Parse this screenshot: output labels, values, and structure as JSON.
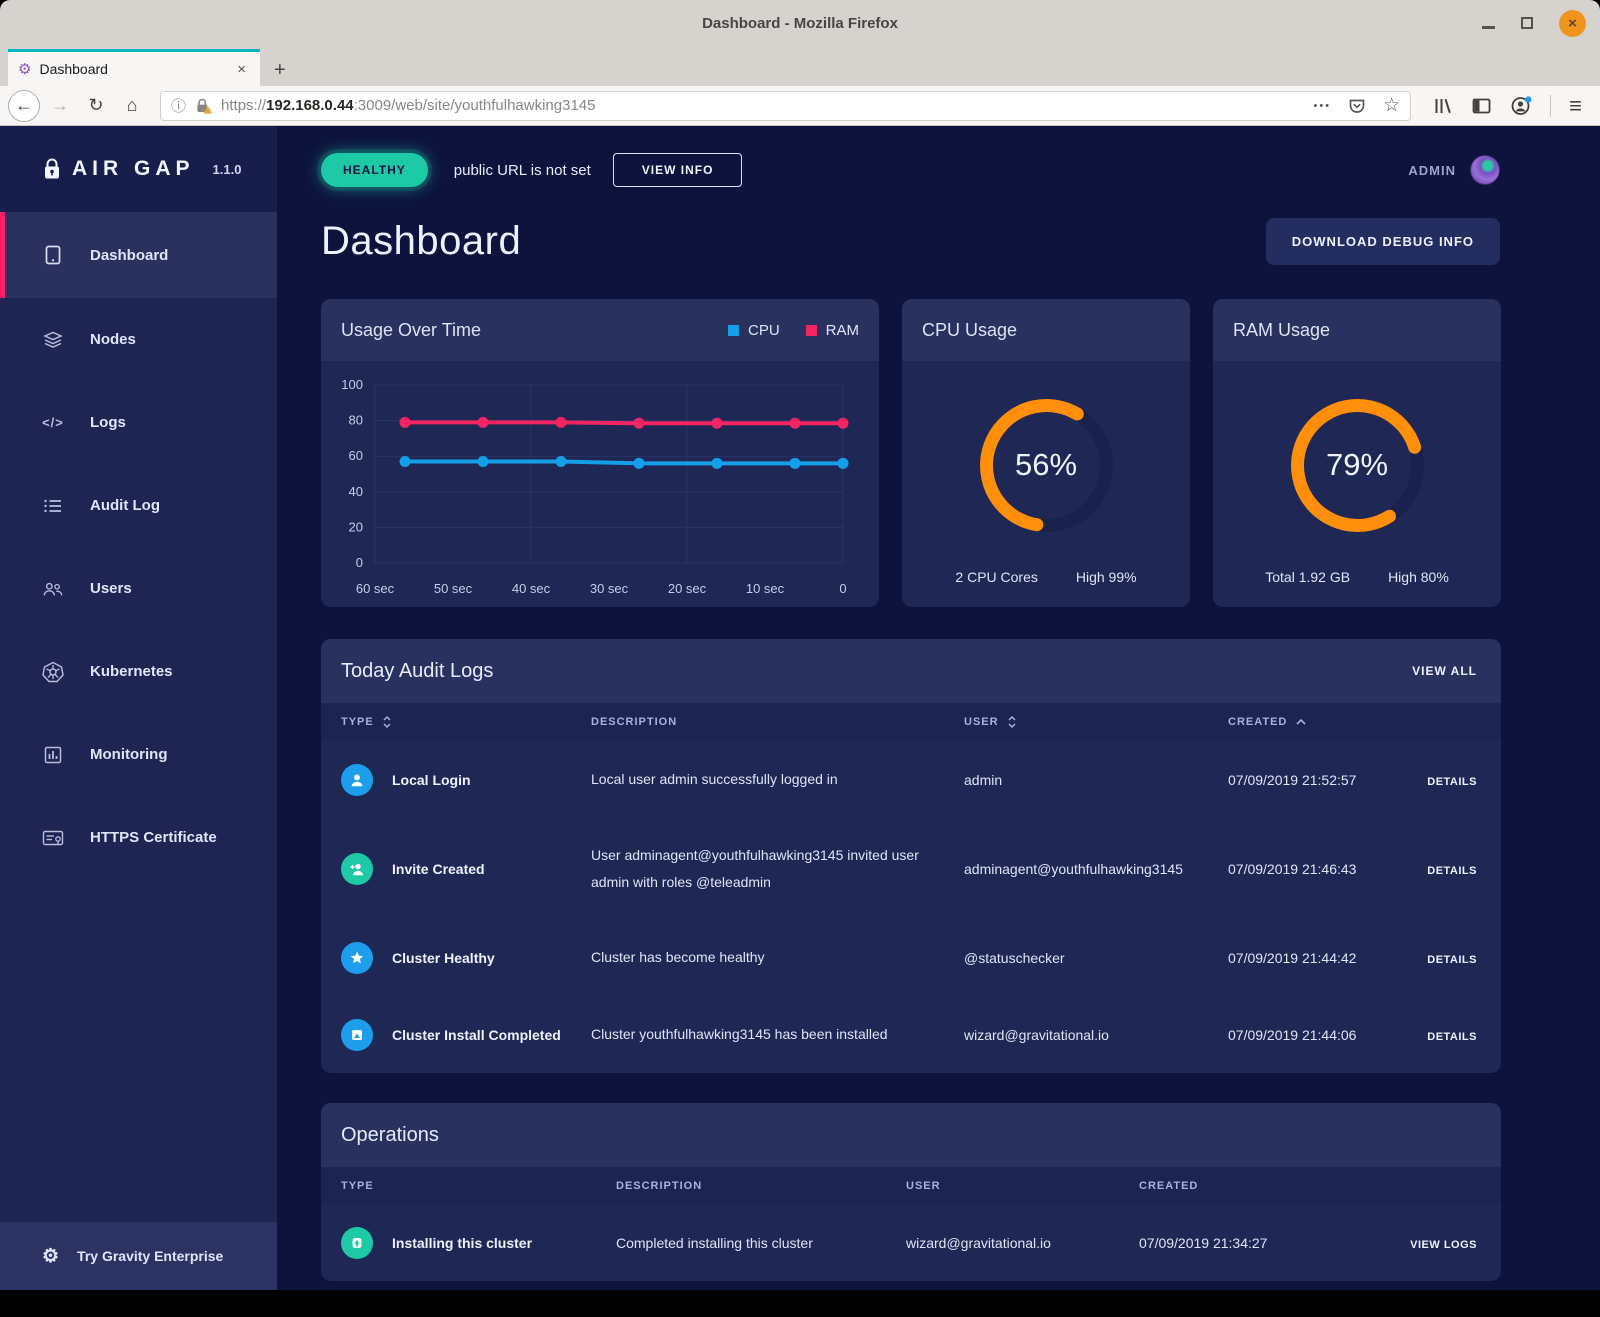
{
  "window": {
    "title": "Dashboard - Mozilla Firefox"
  },
  "browser": {
    "tab_title": "Dashboard",
    "url_scheme": "https://",
    "url_host": "192.168.0.44",
    "url_path": ":3009/web/site/youthfulhawking3145"
  },
  "icons": {
    "back": "←",
    "forward": "→",
    "reload": "↻",
    "home": "⌂",
    "info": "ⓘ",
    "overflow": "•••",
    "bookmark": "☆",
    "menu": "≡",
    "new_tab": "+",
    "close_tab": "×",
    "close_window": "×",
    "gear": "⚙",
    "logs_glyph": "</>"
  },
  "sidebar": {
    "logo": "AIR GAP",
    "version": "1.1.0",
    "items": [
      {
        "label": "Dashboard"
      },
      {
        "label": "Nodes"
      },
      {
        "label": "Logs"
      },
      {
        "label": "Audit Log"
      },
      {
        "label": "Users"
      },
      {
        "label": "Kubernetes"
      },
      {
        "label": "Monitoring"
      },
      {
        "label": "HTTPS Certificate"
      }
    ],
    "footer": "Try Gravity Enterprise"
  },
  "topbar": {
    "status": "HEALTHY",
    "message": "public URL is not set",
    "view_info": "VIEW INFO",
    "user": "ADMIN"
  },
  "page": {
    "title": "Dashboard",
    "debug_button": "DOWNLOAD DEBUG INFO"
  },
  "chart_data": {
    "type": "line",
    "title": "Usage Over Time",
    "x_labels": [
      "60 sec",
      "50 sec",
      "40 sec",
      "30 sec",
      "20 sec",
      "10 sec",
      "0"
    ],
    "y_ticks": [
      0,
      20,
      40,
      60,
      80,
      100
    ],
    "ylim": [
      0,
      100
    ],
    "grid": true,
    "legend_position": "top-right",
    "series": [
      {
        "name": "CPU",
        "color": "#169fe9",
        "values": [
          57,
          57,
          57,
          56,
          56,
          56,
          56
        ]
      },
      {
        "name": "RAM",
        "color": "#f22562",
        "values": [
          79,
          79,
          79,
          78.5,
          78.5,
          78.5,
          78.5
        ]
      }
    ]
  },
  "usage_card": {
    "title": "Usage Over Time"
  },
  "cpu_card": {
    "title": "CPU Usage",
    "percent": 56,
    "value": "56%",
    "left": "2 CPU Cores",
    "right": "High 99%"
  },
  "ram_card": {
    "title": "RAM Usage",
    "percent": 79,
    "value": "79%",
    "left": "Total 1.92 GB",
    "right": "High 80%"
  },
  "audit": {
    "title": "Today Audit Logs",
    "view_all": "VIEW ALL",
    "columns": [
      "TYPE",
      "DESCRIPTION",
      "USER",
      "CREATED"
    ],
    "rows": [
      {
        "type": "Local Login",
        "description": "Local user admin successfully logged in",
        "user": "admin",
        "created": "07/09/2019 21:52:57",
        "action": "DETAILS"
      },
      {
        "type": "Invite Created",
        "description": "User adminagent@youthfulhawking3145 invited user admin with roles @teleadmin",
        "user": "adminagent@youthfulhawking3145",
        "created": "07/09/2019 21:46:43",
        "action": "DETAILS"
      },
      {
        "type": "Cluster Healthy",
        "description": "Cluster has become healthy",
        "user": "@statuschecker",
        "created": "07/09/2019 21:44:42",
        "action": "DETAILS"
      },
      {
        "type": "Cluster Install Completed",
        "description": "Cluster youthfulhawking3145 has been installed",
        "user": "wizard@gravitational.io",
        "created": "07/09/2019 21:44:06",
        "action": "DETAILS"
      }
    ]
  },
  "operations": {
    "title": "Operations",
    "columns": [
      "TYPE",
      "DESCRIPTION",
      "USER",
      "CREATED"
    ],
    "rows": [
      {
        "type": "Installing this cluster",
        "description": "Completed installing this cluster",
        "user": "wizard@gravitational.io",
        "created": "07/09/2019 21:34:27",
        "action": "VIEW LOGS"
      }
    ]
  },
  "colors": {
    "healthy": "#1ec9a6",
    "gauge_arc": "#ff8e0a",
    "cpu": "#169fe9",
    "ram": "#f22562",
    "active_item_accent": "#ff1e68",
    "tab_stripe": "#00b7c3",
    "close_button": "#f0931f"
  }
}
